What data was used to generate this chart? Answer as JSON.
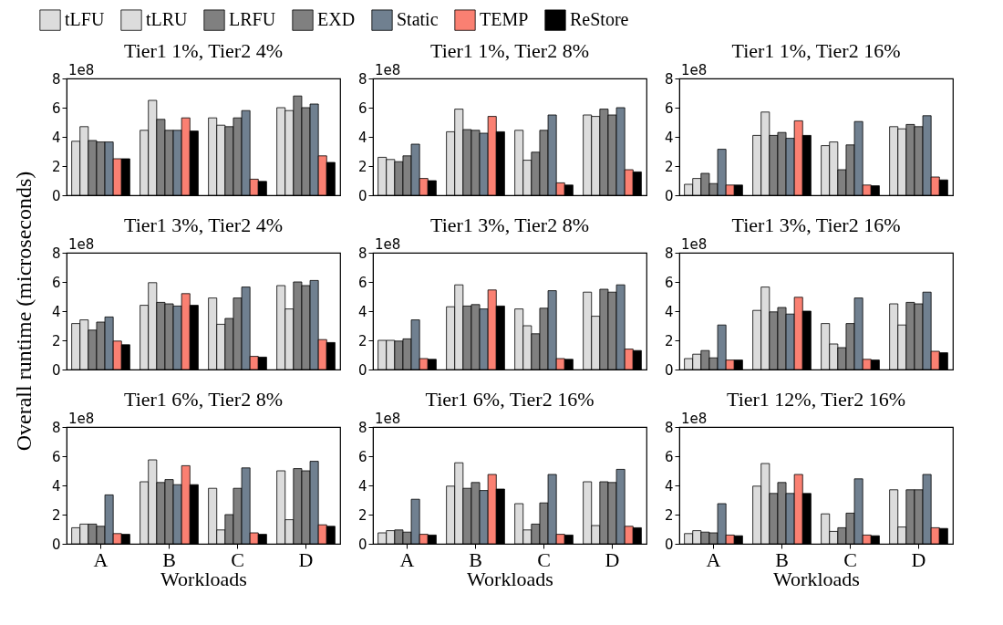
{
  "chart_data": [
    {
      "type": "bar",
      "title": "Tier1 1%, Tier2 4%",
      "categories": [
        "A",
        "B",
        "C",
        "D"
      ],
      "ylim": [
        0,
        8
      ],
      "yticks": [
        0,
        2,
        4,
        6,
        8
      ],
      "annotations": [
        "1e8"
      ],
      "legend": "top",
      "tick_labels": "y",
      "series": [
        {
          "name": "tLFU",
          "color": "#dcdcdc",
          "values": [
            3.7,
            4.45,
            5.3,
            6.0
          ]
        },
        {
          "name": "tLRU",
          "color": "#dcdcdc",
          "values": [
            4.7,
            6.5,
            4.8,
            5.8
          ]
        },
        {
          "name": "LRFU",
          "color": "#808080",
          "values": [
            3.75,
            5.2,
            4.7,
            6.8
          ]
        },
        {
          "name": "EXD",
          "color": "#808080",
          "values": [
            3.65,
            4.45,
            5.3,
            6.0
          ]
        },
        {
          "name": "Static",
          "color": "#708090",
          "values": [
            3.65,
            4.45,
            5.8,
            6.25
          ]
        },
        {
          "name": "TEMP",
          "color": "#fa8072",
          "values": [
            2.5,
            5.3,
            1.1,
            2.7
          ]
        },
        {
          "name": "ReStore",
          "color": "#000000",
          "values": [
            2.5,
            4.4,
            0.95,
            2.25
          ]
        }
      ]
    },
    {
      "type": "bar",
      "title": "Tier1 1%, Tier2 8%",
      "categories": [
        "A",
        "B",
        "C",
        "D"
      ],
      "ylim": [
        0,
        8
      ],
      "yticks": [
        0,
        2,
        4,
        6,
        8
      ],
      "annotations": [
        "1e8"
      ],
      "tick_labels": "y",
      "series": [
        {
          "name": "tLFU",
          "color": "#dcdcdc",
          "values": [
            2.6,
            4.35,
            4.45,
            5.5
          ]
        },
        {
          "name": "tLRU",
          "color": "#dcdcdc",
          "values": [
            2.45,
            5.9,
            2.4,
            5.4
          ]
        },
        {
          "name": "LRFU",
          "color": "#808080",
          "values": [
            2.3,
            4.5,
            2.95,
            5.9
          ]
        },
        {
          "name": "EXD",
          "color": "#808080",
          "values": [
            2.7,
            4.45,
            4.45,
            5.5
          ]
        },
        {
          "name": "Static",
          "color": "#708090",
          "values": [
            3.5,
            4.25,
            5.5,
            6.0
          ]
        },
        {
          "name": "TEMP",
          "color": "#fa8072",
          "values": [
            1.15,
            5.4,
            0.85,
            1.75
          ]
        },
        {
          "name": "ReStore",
          "color": "#000000",
          "values": [
            1.0,
            4.35,
            0.7,
            1.6
          ]
        }
      ]
    },
    {
      "type": "bar",
      "title": "Tier1 1%, Tier2 16%",
      "categories": [
        "A",
        "B",
        "C",
        "D"
      ],
      "ylim": [
        0,
        8
      ],
      "yticks": [
        0,
        2,
        4,
        6,
        8
      ],
      "annotations": [
        "1e8"
      ],
      "tick_labels": "y",
      "series": [
        {
          "name": "tLFU",
          "color": "#dcdcdc",
          "values": [
            0.75,
            4.1,
            3.4,
            4.7
          ]
        },
        {
          "name": "tLRU",
          "color": "#dcdcdc",
          "values": [
            1.15,
            5.7,
            3.65,
            4.55
          ]
        },
        {
          "name": "LRFU",
          "color": "#808080",
          "values": [
            1.5,
            4.1,
            1.75,
            4.85
          ]
        },
        {
          "name": "EXD",
          "color": "#808080",
          "values": [
            0.8,
            4.3,
            3.45,
            4.7
          ]
        },
        {
          "name": "Static",
          "color": "#708090",
          "values": [
            3.15,
            3.9,
            5.05,
            5.45
          ]
        },
        {
          "name": "TEMP",
          "color": "#fa8072",
          "values": [
            0.7,
            5.1,
            0.7,
            1.25
          ]
        },
        {
          "name": "ReStore",
          "color": "#000000",
          "values": [
            0.7,
            4.1,
            0.65,
            1.05
          ]
        }
      ]
    },
    {
      "type": "bar",
      "title": "Tier1 3%, Tier2 4%",
      "ylabel": "Overall runtime (microseconds)",
      "categories": [
        "A",
        "B",
        "C",
        "D"
      ],
      "ylim": [
        0,
        8
      ],
      "yticks": [
        0,
        2,
        4,
        6,
        8
      ],
      "annotations": [
        "1e8"
      ],
      "tick_labels": "y",
      "series": [
        {
          "name": "tLFU",
          "color": "#dcdcdc",
          "values": [
            3.15,
            4.4,
            4.9,
            5.75
          ]
        },
        {
          "name": "tLRU",
          "color": "#dcdcdc",
          "values": [
            3.4,
            5.95,
            3.1,
            4.15
          ]
        },
        {
          "name": "LRFU",
          "color": "#808080",
          "values": [
            2.7,
            4.6,
            3.5,
            6.0
          ]
        },
        {
          "name": "EXD",
          "color": "#808080",
          "values": [
            3.25,
            4.5,
            4.9,
            5.75
          ]
        },
        {
          "name": "Static",
          "color": "#708090",
          "values": [
            3.6,
            4.35,
            5.65,
            6.1
          ]
        },
        {
          "name": "TEMP",
          "color": "#fa8072",
          "values": [
            1.95,
            5.2,
            0.9,
            2.05
          ]
        },
        {
          "name": "ReStore",
          "color": "#000000",
          "values": [
            1.7,
            4.4,
            0.85,
            1.85
          ]
        }
      ]
    },
    {
      "type": "bar",
      "title": "Tier1 3%, Tier2 8%",
      "categories": [
        "A",
        "B",
        "C",
        "D"
      ],
      "ylim": [
        0,
        8
      ],
      "yticks": [
        0,
        2,
        4,
        6,
        8
      ],
      "annotations": [
        "1e8"
      ],
      "tick_labels": "y",
      "series": [
        {
          "name": "tLFU",
          "color": "#dcdcdc",
          "values": [
            2.0,
            4.3,
            4.15,
            5.3
          ]
        },
        {
          "name": "tLRU",
          "color": "#dcdcdc",
          "values": [
            2.0,
            5.8,
            3.0,
            3.65
          ]
        },
        {
          "name": "LRFU",
          "color": "#808080",
          "values": [
            1.95,
            4.35,
            2.45,
            5.5
          ]
        },
        {
          "name": "EXD",
          "color": "#808080",
          "values": [
            2.1,
            4.45,
            4.2,
            5.3
          ]
        },
        {
          "name": "Static",
          "color": "#708090",
          "values": [
            3.4,
            4.15,
            5.4,
            5.8
          ]
        },
        {
          "name": "TEMP",
          "color": "#fa8072",
          "values": [
            0.75,
            5.45,
            0.75,
            1.4
          ]
        },
        {
          "name": "ReStore",
          "color": "#000000",
          "values": [
            0.7,
            4.35,
            0.7,
            1.3
          ]
        }
      ]
    },
    {
      "type": "bar",
      "title": "Tier1 3%, Tier2 16%",
      "categories": [
        "A",
        "B",
        "C",
        "D"
      ],
      "ylim": [
        0,
        8
      ],
      "yticks": [
        0,
        2,
        4,
        6,
        8
      ],
      "annotations": [
        "1e8"
      ],
      "tick_labels": "y",
      "series": [
        {
          "name": "tLFU",
          "color": "#dcdcdc",
          "values": [
            0.75,
            4.05,
            3.15,
            4.5
          ]
        },
        {
          "name": "tLRU",
          "color": "#dcdcdc",
          "values": [
            1.05,
            5.65,
            1.75,
            3.05
          ]
        },
        {
          "name": "LRFU",
          "color": "#808080",
          "values": [
            1.3,
            3.95,
            1.5,
            4.6
          ]
        },
        {
          "name": "EXD",
          "color": "#808080",
          "values": [
            0.8,
            4.25,
            3.15,
            4.5
          ]
        },
        {
          "name": "Static",
          "color": "#708090",
          "values": [
            3.05,
            3.8,
            4.9,
            5.3
          ]
        },
        {
          "name": "TEMP",
          "color": "#fa8072",
          "values": [
            0.65,
            4.95,
            0.7,
            1.25
          ]
        },
        {
          "name": "ReStore",
          "color": "#000000",
          "values": [
            0.65,
            4.0,
            0.65,
            1.15
          ]
        }
      ]
    },
    {
      "type": "bar",
      "title": "Tier1 6%, Tier2 8%",
      "xlabel": "Workloads",
      "categories": [
        "A",
        "B",
        "C",
        "D"
      ],
      "ylim": [
        0,
        8
      ],
      "yticks": [
        0,
        2,
        4,
        6,
        8
      ],
      "annotations": [
        "1e8"
      ],
      "series": [
        {
          "name": "tLFU",
          "color": "#dcdcdc",
          "values": [
            1.1,
            4.25,
            3.8,
            5.0
          ]
        },
        {
          "name": "tLRU",
          "color": "#dcdcdc",
          "values": [
            1.35,
            5.75,
            0.95,
            1.65
          ]
        },
        {
          "name": "LRFU",
          "color": "#808080",
          "values": [
            1.35,
            4.2,
            2.0,
            5.15
          ]
        },
        {
          "name": "EXD",
          "color": "#808080",
          "values": [
            1.2,
            4.4,
            3.8,
            5.0
          ]
        },
        {
          "name": "Static",
          "color": "#708090",
          "values": [
            3.35,
            4.05,
            5.2,
            5.65
          ]
        },
        {
          "name": "TEMP",
          "color": "#fa8072",
          "values": [
            0.7,
            5.35,
            0.75,
            1.3
          ]
        },
        {
          "name": "ReStore",
          "color": "#000000",
          "values": [
            0.65,
            4.05,
            0.65,
            1.2
          ]
        }
      ]
    },
    {
      "type": "bar",
      "title": "Tier1 6%, Tier2 16%",
      "xlabel": "Workloads",
      "categories": [
        "A",
        "B",
        "C",
        "D"
      ],
      "ylim": [
        0,
        8
      ],
      "yticks": [
        0,
        2,
        4,
        6,
        8
      ],
      "annotations": [
        "1e8"
      ],
      "series": [
        {
          "name": "tLFU",
          "color": "#dcdcdc",
          "values": [
            0.75,
            3.95,
            2.75,
            4.25
          ]
        },
        {
          "name": "tLRU",
          "color": "#dcdcdc",
          "values": [
            0.9,
            5.55,
            0.95,
            1.25
          ]
        },
        {
          "name": "LRFU",
          "color": "#808080",
          "values": [
            0.95,
            3.8,
            1.35,
            4.25
          ]
        },
        {
          "name": "EXD",
          "color": "#808080",
          "values": [
            0.8,
            4.2,
            2.8,
            4.2
          ]
        },
        {
          "name": "Static",
          "color": "#708090",
          "values": [
            3.05,
            3.65,
            4.75,
            5.1
          ]
        },
        {
          "name": "TEMP",
          "color": "#fa8072",
          "values": [
            0.65,
            4.75,
            0.65,
            1.2
          ]
        },
        {
          "name": "ReStore",
          "color": "#000000",
          "values": [
            0.6,
            3.75,
            0.6,
            1.1
          ]
        }
      ]
    },
    {
      "type": "bar",
      "title": "Tier1 12%, Tier2 16%",
      "xlabel": "Workloads",
      "categories": [
        "A",
        "B",
        "C",
        "D"
      ],
      "ylim": [
        0,
        8
      ],
      "yticks": [
        0,
        2,
        4,
        6,
        8
      ],
      "annotations": [
        "1e8"
      ],
      "series": [
        {
          "name": "tLFU",
          "color": "#dcdcdc",
          "values": [
            0.7,
            3.95,
            2.05,
            3.7
          ]
        },
        {
          "name": "tLRU",
          "color": "#dcdcdc",
          "values": [
            0.9,
            5.5,
            0.85,
            1.15
          ]
        },
        {
          "name": "LRFU",
          "color": "#808080",
          "values": [
            0.8,
            3.45,
            1.1,
            3.7
          ]
        },
        {
          "name": "EXD",
          "color": "#808080",
          "values": [
            0.75,
            4.2,
            2.1,
            3.7
          ]
        },
        {
          "name": "Static",
          "color": "#708090",
          "values": [
            2.75,
            3.45,
            4.45,
            4.75
          ]
        },
        {
          "name": "TEMP",
          "color": "#fa8072",
          "values": [
            0.6,
            4.75,
            0.6,
            1.1
          ]
        },
        {
          "name": "ReStore",
          "color": "#000000",
          "values": [
            0.55,
            3.45,
            0.55,
            1.05
          ]
        }
      ]
    }
  ]
}
